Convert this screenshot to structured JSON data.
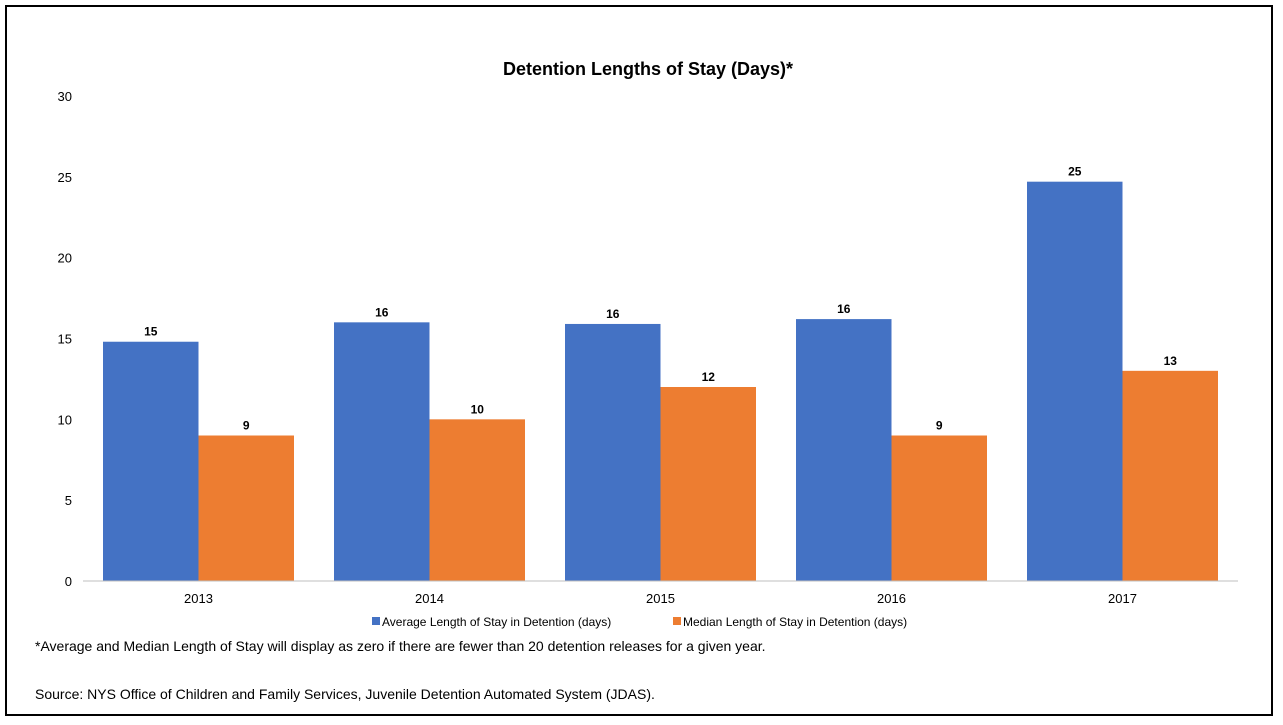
{
  "chart_data": {
    "type": "bar",
    "title": "Detention Lengths of Stay (Days)*",
    "xlabel": "",
    "ylabel": "",
    "categories": [
      "2013",
      "2014",
      "2015",
      "2016",
      "2017"
    ],
    "series": [
      {
        "name": "Average Length of Stay in Detention (days)",
        "values": [
          14.8,
          16.0,
          15.9,
          16.2,
          24.7
        ],
        "labels": [
          "15",
          "16",
          "16",
          "16",
          "25"
        ],
        "color": "#4472C4"
      },
      {
        "name": "Median Length of Stay in Detention (days)",
        "values": [
          9,
          10,
          12,
          9,
          13
        ],
        "labels": [
          "9",
          "10",
          "12",
          "9",
          "13"
        ],
        "color": "#ED7D31"
      }
    ],
    "ylim": [
      0,
      30
    ],
    "yticks": [
      0,
      5,
      10,
      15,
      20,
      25,
      30
    ],
    "grid": false,
    "legend": "bottom"
  },
  "footnote": "*Average and Median Length of Stay will display as zero if there are fewer than 20 detention releases for a given year.",
  "source": "Source: NYS Office of Children and Family Services, Juvenile Detention Automated System (JDAS)."
}
